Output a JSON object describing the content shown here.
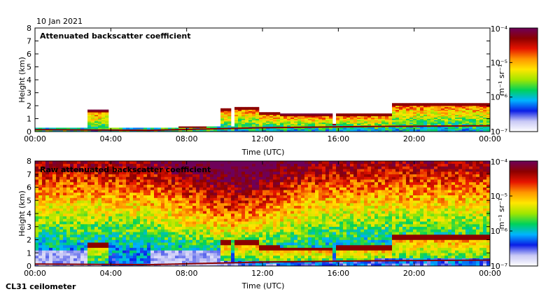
{
  "date_label": "10 Jan 2021",
  "instrument": "CL31 ceilometer",
  "colors": {
    "colormap": [
      "#ffffff",
      "#c8c8f5",
      "#0a1ee6",
      "#00b4ff",
      "#00d25a",
      "#a0e600",
      "#ffe600",
      "#ff9600",
      "#e61400",
      "#8c0000",
      "#6e005a"
    ],
    "cloud": "#8c0000",
    "surface": "#8c0000"
  },
  "chart_data": [
    {
      "type": "heatmap",
      "title": "Attenuated backscatter coefficient",
      "xlabel": "Time (UTC)",
      "ylabel": "Height (km)",
      "xlim": [
        0,
        24
      ],
      "ylim": [
        0,
        8
      ],
      "xticks": [
        "00:00",
        "04:00",
        "08:00",
        "12:00",
        "16:00",
        "20:00",
        "00:00"
      ],
      "yticks": [
        "0",
        "1",
        "2",
        "3",
        "4",
        "5",
        "6",
        "7",
        "8"
      ],
      "colorbar": {
        "label": "m⁻¹ sr⁻¹",
        "ticks": [
          "10⁻⁷",
          "10⁻⁶",
          "10⁻⁵",
          "10⁻⁴"
        ],
        "scale": "log",
        "range": [
          1e-07,
          0.0001
        ]
      },
      "noise_level": "low",
      "cloud_layers": [
        {
          "t": [
            2.7,
            3.8
          ],
          "base_km": 1.5
        },
        {
          "t": [
            9.8,
            10.3
          ],
          "base_km": 1.65
        },
        {
          "t": [
            10.6,
            11.8
          ],
          "base_km": 1.75
        },
        {
          "t": [
            11.8,
            13.0
          ],
          "base_km": 1.35
        },
        {
          "t": [
            13.0,
            15.6
          ],
          "base_km": 1.2
        },
        {
          "t": [
            15.9,
            18.8
          ],
          "base_km": 1.25
        },
        {
          "t": [
            18.8,
            24.0
          ],
          "base_km": 2.05
        }
      ],
      "surface_layer": [
        {
          "t": 0,
          "km": 0.15
        },
        {
          "t": 6,
          "km": 0.1
        },
        {
          "t": 12,
          "km": 0.3
        },
        {
          "t": 18,
          "km": 0.4
        },
        {
          "t": 24,
          "km": 0.45
        }
      ]
    },
    {
      "type": "heatmap",
      "title": "Raw attenuated backscatter coefficient",
      "xlabel": "Time (UTC)",
      "ylabel": "Height (km)",
      "xlim": [
        0,
        24
      ],
      "ylim": [
        0,
        8
      ],
      "xticks": [
        "00:00",
        "04:00",
        "08:00",
        "12:00",
        "16:00",
        "20:00",
        "00:00"
      ],
      "yticks": [
        "0",
        "1",
        "2",
        "3",
        "4",
        "5",
        "6",
        "7",
        "8"
      ],
      "colorbar": {
        "label": "m⁻¹ sr⁻¹",
        "ticks": [
          "10⁻⁷",
          "10⁻⁶",
          "10⁻⁵",
          "10⁻⁴"
        ],
        "scale": "log",
        "range": [
          1e-07,
          0.0001
        ]
      },
      "noise_level": "high",
      "cloud_layers": [
        {
          "t": [
            2.7,
            3.8
          ],
          "base_km": 1.5
        },
        {
          "t": [
            9.8,
            10.3
          ],
          "base_km": 1.65
        },
        {
          "t": [
            10.6,
            11.8
          ],
          "base_km": 1.75
        },
        {
          "t": [
            11.8,
            13.0
          ],
          "base_km": 1.35
        },
        {
          "t": [
            13.0,
            15.6
          ],
          "base_km": 1.2
        },
        {
          "t": [
            15.9,
            18.8
          ],
          "base_km": 1.25
        },
        {
          "t": [
            18.8,
            24.0
          ],
          "base_km": 2.05
        }
      ],
      "surface_layer": [
        {
          "t": 0,
          "km": 0.15
        },
        {
          "t": 6,
          "km": 0.1
        },
        {
          "t": 12,
          "km": 0.3
        },
        {
          "t": 18,
          "km": 0.4
        },
        {
          "t": 24,
          "km": 0.45
        }
      ]
    }
  ]
}
